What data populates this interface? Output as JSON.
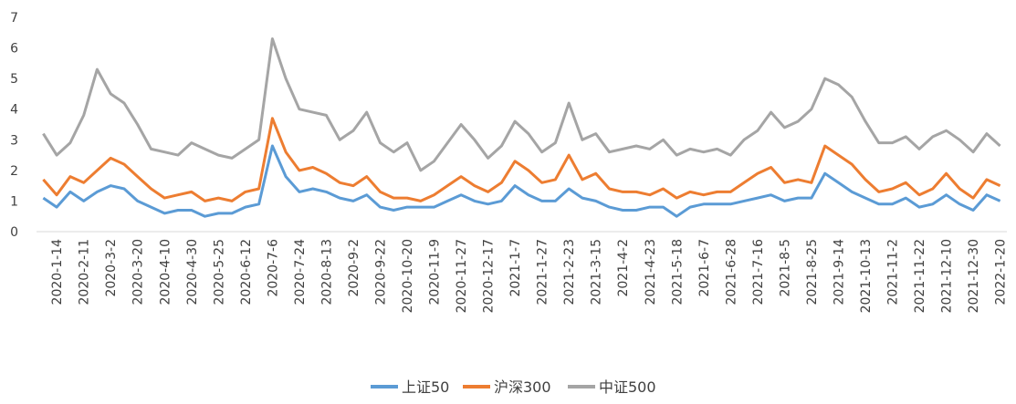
{
  "chart_data": {
    "type": "line",
    "categories": [
      null,
      "2020-1-14",
      null,
      "2020-2-11",
      null,
      "2020-3-2",
      null,
      "2020-3-20",
      null,
      "2020-4-10",
      null,
      "2020-4-30",
      null,
      "2020-5-25",
      null,
      "2020-6-12",
      null,
      "2020-7-6",
      null,
      "2020-7-24",
      null,
      "2020-8-13",
      null,
      "2020-9-2",
      null,
      "2020-9-22",
      null,
      "2020-10-20",
      null,
      "2020-11-9",
      null,
      "2020-11-27",
      null,
      "2020-12-17",
      null,
      "2021-1-7",
      null,
      "2021-1-27",
      null,
      "2021-2-23",
      null,
      "2021-3-15",
      null,
      "2021-4-2",
      null,
      "2021-4-23",
      null,
      "2021-5-18",
      null,
      "2021-6-7",
      null,
      "2021-6-28",
      null,
      "2021-7-16",
      null,
      "2021-8-5",
      null,
      "2021-8-25",
      null,
      "2021-9-14",
      null,
      "2021-10-13",
      null,
      "2021-11-2",
      null,
      "2021-11-22",
      null,
      "2021-12-10",
      null,
      "2021-12-30",
      null,
      "2022-1-20"
    ],
    "series": [
      {
        "name": "上证50",
        "color": "#5b9bd5",
        "values": [
          1.1,
          0.8,
          1.3,
          1.0,
          1.3,
          1.5,
          1.4,
          1.0,
          0.8,
          0.6,
          0.7,
          0.7,
          0.5,
          0.6,
          0.6,
          0.8,
          0.9,
          2.8,
          1.8,
          1.3,
          1.4,
          1.3,
          1.1,
          1.0,
          1.2,
          0.8,
          0.7,
          0.8,
          0.8,
          0.8,
          1.0,
          1.2,
          1.0,
          0.9,
          1.0,
          1.5,
          1.2,
          1.0,
          1.0,
          1.4,
          1.1,
          1.0,
          0.8,
          0.7,
          0.7,
          0.8,
          0.8,
          0.5,
          0.8,
          0.9,
          0.9,
          0.9,
          1.0,
          1.1,
          1.2,
          1.0,
          1.1,
          1.1,
          1.9,
          1.6,
          1.3,
          1.1,
          0.9,
          0.9,
          1.1,
          0.8,
          0.9,
          1.2,
          0.9,
          0.7,
          1.2,
          1.0
        ]
      },
      {
        "name": "沪深300",
        "color": "#ed7d31",
        "values": [
          1.7,
          1.2,
          1.8,
          1.6,
          2.0,
          2.4,
          2.2,
          1.8,
          1.4,
          1.1,
          1.2,
          1.3,
          1.0,
          1.1,
          1.0,
          1.3,
          1.4,
          3.7,
          2.6,
          2.0,
          2.1,
          1.9,
          1.6,
          1.5,
          1.8,
          1.3,
          1.1,
          1.1,
          1.0,
          1.2,
          1.5,
          1.8,
          1.5,
          1.3,
          1.6,
          2.3,
          2.0,
          1.6,
          1.7,
          2.5,
          1.7,
          1.9,
          1.4,
          1.3,
          1.3,
          1.2,
          1.4,
          1.1,
          1.3,
          1.2,
          1.3,
          1.3,
          1.6,
          1.9,
          2.1,
          1.6,
          1.7,
          1.6,
          2.8,
          2.5,
          2.2,
          1.7,
          1.3,
          1.4,
          1.6,
          1.2,
          1.4,
          1.9,
          1.4,
          1.1,
          1.7,
          1.5
        ]
      },
      {
        "name": "中证500",
        "color": "#a5a5a5",
        "values": [
          3.2,
          2.5,
          2.9,
          3.8,
          5.3,
          4.5,
          4.2,
          3.5,
          2.7,
          2.6,
          2.5,
          2.9,
          2.7,
          2.5,
          2.4,
          2.7,
          3.0,
          6.3,
          5.0,
          4.0,
          3.9,
          3.8,
          3.0,
          3.3,
          3.9,
          2.9,
          2.6,
          2.9,
          2.0,
          2.3,
          2.9,
          3.5,
          3.0,
          2.4,
          2.8,
          3.6,
          3.2,
          2.6,
          2.9,
          4.2,
          3.0,
          3.2,
          2.6,
          2.7,
          2.8,
          2.7,
          3.0,
          2.5,
          2.7,
          2.6,
          2.7,
          2.5,
          3.0,
          3.3,
          3.9,
          3.4,
          3.6,
          4.0,
          5.0,
          4.8,
          4.4,
          3.6,
          2.9,
          2.9,
          3.1,
          2.7,
          3.1,
          3.3,
          3.0,
          2.6,
          3.2,
          2.8
        ]
      }
    ],
    "ylim": [
      0,
      7
    ],
    "yticks": [
      0,
      1,
      2,
      3,
      4,
      5,
      6,
      7
    ],
    "grid": false,
    "legend": "bottom"
  }
}
